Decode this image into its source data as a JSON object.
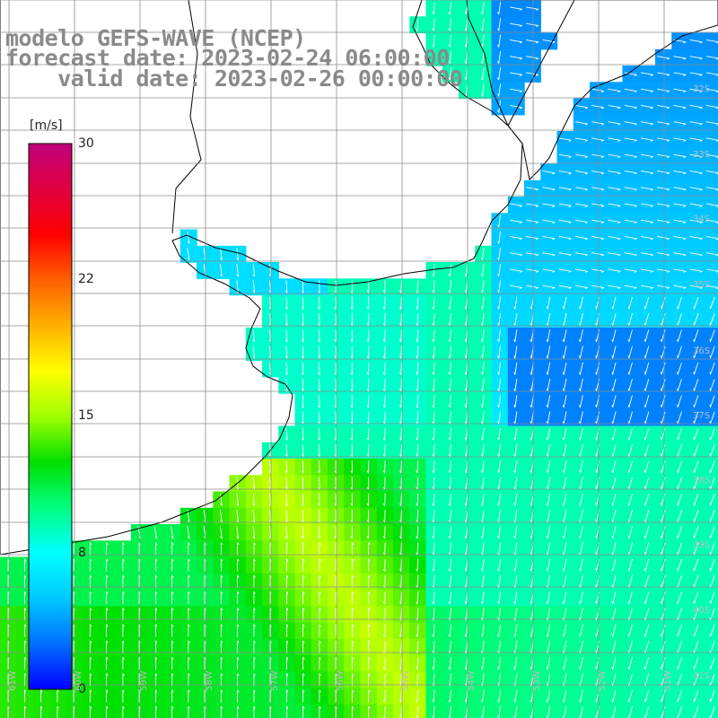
{
  "title": {
    "line1": "modelo GEFS-WAVE (NCEP)",
    "line2": "forecast date: 2023-02-24 06:00:00",
    "line3": "    valid date: 2023-02-26 00:00:00"
  },
  "colorbar": {
    "unit": "[m/s]",
    "min": 0,
    "max": 30,
    "ticks": [
      "30",
      "22",
      "15",
      "8",
      "0"
    ],
    "tick_values": [
      30,
      22,
      15,
      8,
      0
    ],
    "colors": [
      "#0000ff",
      "#0070ff",
      "#00c8ff",
      "#00ffff",
      "#00ff80",
      "#00e000",
      "#a0ff00",
      "#ffff00",
      "#ffb000",
      "#ff6000",
      "#ff0000",
      "#e00040",
      "#c0007a"
    ]
  },
  "map": {
    "lat_labels": [
      "32S",
      "33S",
      "34S",
      "35S",
      "36S",
      "37S",
      "38S",
      "39S",
      "40S",
      "41S"
    ],
    "lat_values": [
      -32,
      -33,
      -34,
      -35,
      -36,
      -37,
      -38,
      -39,
      -40,
      -41
    ],
    "lon_labels": [
      "61W",
      "60W",
      "59W",
      "58W",
      "57W",
      "56W",
      "55W",
      "54W",
      "53W",
      "52W",
      "51W"
    ],
    "lon_values": [
      -61,
      -60,
      -59,
      -58,
      -57,
      -56,
      -55,
      -54,
      -53,
      -52,
      -51
    ],
    "field": "wind speed (m/s)",
    "grid": true
  }
}
